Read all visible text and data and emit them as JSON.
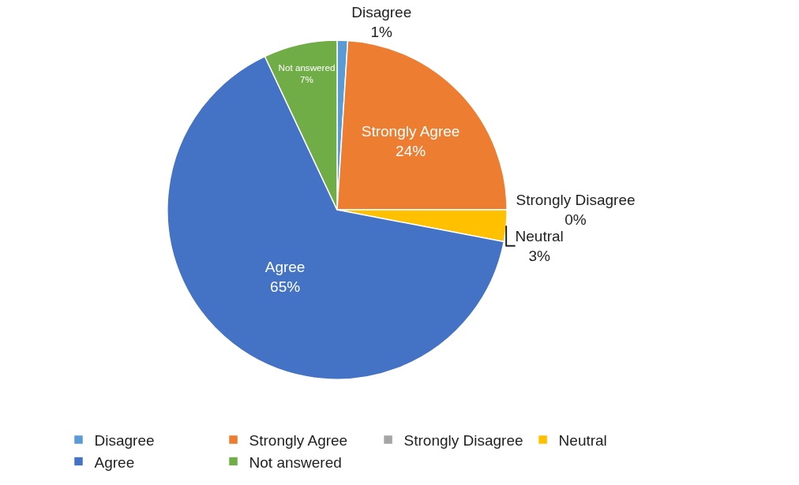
{
  "chart_data": {
    "type": "pie",
    "categories": [
      "Disagree",
      "Strongly Agree",
      "Strongly Disagree",
      "Neutral",
      "Agree",
      "Not answered"
    ],
    "values": [
      1,
      24,
      0,
      3,
      65,
      7
    ],
    "value_labels": [
      "1%",
      "24%",
      "0%",
      "3%",
      "65%",
      "7%"
    ],
    "colors": [
      "#5b9bd5",
      "#ed7d31",
      "#a5a5a5",
      "#ffc000",
      "#4472c4",
      "#70ad47"
    ],
    "legend": "bottom"
  }
}
